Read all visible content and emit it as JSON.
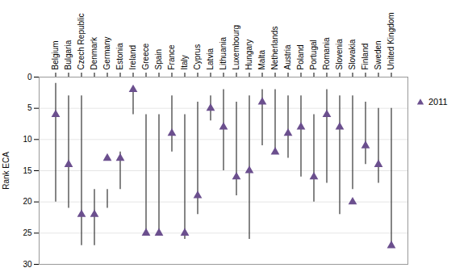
{
  "chart_data": {
    "type": "range",
    "categories": [
      "Belgium",
      "Bulgaria",
      "Czech Republic",
      "Denmark",
      "Germany",
      "Estonia",
      "Ireland",
      "Greece",
      "Spain",
      "France",
      "Italy",
      "Cyprus",
      "Latvia",
      "Lithuania",
      "Luxembourg",
      "Hungary",
      "Malta",
      "Netherlands",
      "Austria",
      "Poland",
      "Portugal",
      "Romania",
      "Slovenia",
      "Slovakia",
      "Finland",
      "Sweden",
      "United Kingdom"
    ],
    "low": [
      1,
      3,
      3,
      18,
      18,
      12,
      2,
      6,
      6,
      3,
      6,
      4,
      3,
      2,
      4,
      3,
      2,
      2,
      3,
      3,
      6,
      2,
      3,
      3,
      4,
      5,
      5
    ],
    "high": [
      20,
      21,
      27,
      27,
      21,
      18,
      6,
      25,
      25,
      12,
      26,
      22,
      7,
      15,
      19,
      26,
      11,
      12,
      13,
      16,
      20,
      17,
      22,
      18,
      14,
      17,
      27
    ],
    "color": "#333333",
    "series": [
      {
        "name": "2011",
        "color": "#6b4f8e",
        "marker": "triangle",
        "values": [
          6,
          14,
          22,
          22,
          13,
          13,
          2,
          25,
          25,
          9,
          25,
          19,
          5,
          8,
          16,
          15,
          4,
          12,
          9,
          8,
          16,
          6,
          8,
          20,
          11,
          14,
          27
        ]
      }
    ],
    "ylabel": "Rank ECA",
    "ylim": [
      30,
      0
    ],
    "yticks": [
      0,
      5,
      10,
      15,
      20,
      25,
      30
    ],
    "grid": true,
    "legend": "right"
  }
}
